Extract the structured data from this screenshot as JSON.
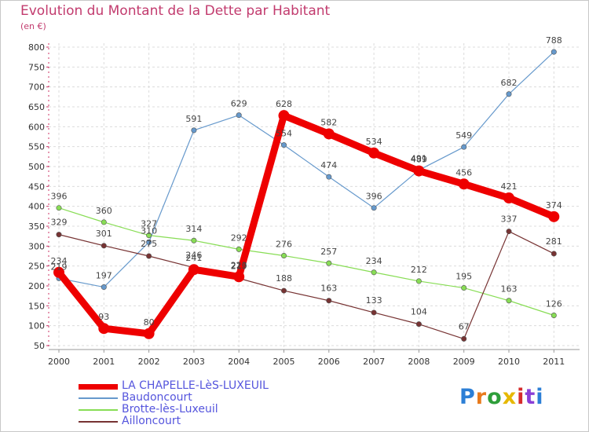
{
  "title": "Evolution du Montant de la Dette par Habitant",
  "subtitle": "(en €)",
  "chart_data": {
    "type": "line",
    "title": "Evolution du Montant de la Dette par Habitant",
    "ylabel": "(en €)",
    "xlabel": "",
    "x": [
      "2000",
      "2001",
      "2002",
      "2003",
      "2004",
      "2005",
      "2006",
      "2007",
      "2008",
      "2009",
      "2010",
      "2011"
    ],
    "yticks": [
      50,
      100,
      150,
      200,
      250,
      300,
      350,
      400,
      450,
      500,
      550,
      600,
      650,
      700,
      750,
      800
    ],
    "ylim": [
      50,
      800
    ],
    "grid": "horizontal dashed",
    "legend": "bottom-left",
    "series": [
      {
        "name": "LA CHAPELLE-LèS-LUXEUIL",
        "color": "#ee0000",
        "values": [
          234,
          93,
          80,
          241,
          223,
          628,
          582,
          534,
          489,
          456,
          421,
          374
        ]
      },
      {
        "name": "Baudoncourt",
        "color": "#6699cc",
        "values": [
          219,
          197,
          310,
          591,
          629,
          554,
          474,
          396,
          491,
          549,
          682,
          788
        ]
      },
      {
        "name": "Brotte-lès-Luxeuil",
        "color": "#88dd55",
        "values": [
          396,
          360,
          327,
          314,
          292,
          276,
          257,
          234,
          212,
          195,
          163,
          126
        ]
      },
      {
        "name": "Ailloncourt",
        "color": "#773333",
        "values": [
          329,
          301,
          275,
          246,
          219,
          188,
          163,
          133,
          104,
          67,
          337,
          281
        ]
      }
    ]
  },
  "logo": {
    "letters": [
      "P",
      "r",
      "o",
      "x",
      "i",
      "t",
      "i"
    ],
    "colors": [
      "#2c7fd6",
      "#e87a1c",
      "#2e9e3a",
      "#e6b800",
      "#d62c2c",
      "#8a3fd6",
      "#2c7fd6"
    ]
  }
}
